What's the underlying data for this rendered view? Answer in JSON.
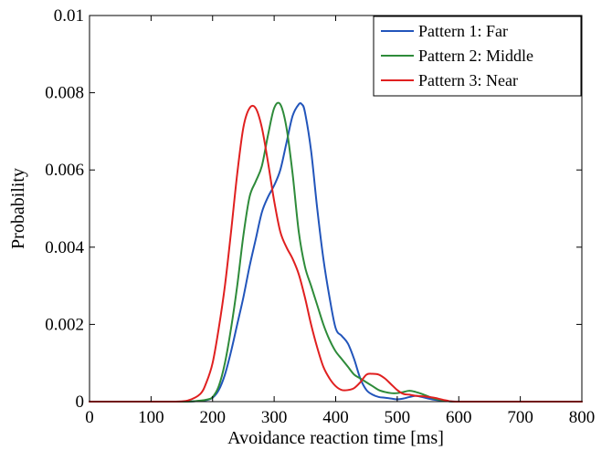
{
  "chart_data": {
    "type": "line",
    "title": "",
    "xlabel": "Avoidance reaction time [ms]",
    "ylabel": "Probability",
    "xlim": [
      0,
      800
    ],
    "ylim": [
      0,
      0.01
    ],
    "xticks": [
      0,
      100,
      200,
      300,
      400,
      500,
      600,
      700,
      800
    ],
    "xtick_labels": [
      "0",
      "100",
      "200",
      "300",
      "400",
      "500",
      "600",
      "700",
      "800"
    ],
    "yticks": [
      0,
      0.002,
      0.004,
      0.006,
      0.008,
      0.01
    ],
    "ytick_labels": [
      "0",
      "0.002",
      "0.004",
      "0.006",
      "0.008",
      "0.01"
    ],
    "grid": false,
    "legend_position": "top-right",
    "series": [
      {
        "name": "Pattern 1: Far",
        "color": "#2255bb",
        "x": [
          0,
          100,
          150,
          170,
          190,
          200,
          210,
          220,
          230,
          240,
          250,
          260,
          270,
          280,
          290,
          300,
          310,
          320,
          330,
          340,
          345,
          350,
          360,
          370,
          380,
          390,
          400,
          410,
          420,
          430,
          440,
          450,
          460,
          470,
          480,
          490,
          500,
          510,
          520,
          530,
          540,
          560,
          580,
          600,
          700,
          800
        ],
        "y": [
          0,
          0,
          0,
          1e-05,
          4e-05,
          0.0001,
          0.0003,
          0.0007,
          0.0013,
          0.002,
          0.0027,
          0.0035,
          0.0042,
          0.0049,
          0.0053,
          0.0056,
          0.006,
          0.0067,
          0.0074,
          0.0077,
          0.0077,
          0.0075,
          0.0065,
          0.005,
          0.0037,
          0.0027,
          0.0019,
          0.0017,
          0.0015,
          0.0011,
          0.0006,
          0.0003,
          0.00018,
          0.00012,
          0.0001,
          8e-05,
          6e-05,
          8e-05,
          0.00012,
          0.00015,
          0.00012,
          5e-05,
          2e-05,
          0,
          0,
          0
        ]
      },
      {
        "name": "Pattern 2: Middle",
        "color": "#2e8b3a",
        "x": [
          0,
          100,
          150,
          170,
          190,
          200,
          210,
          220,
          230,
          240,
          250,
          260,
          270,
          280,
          290,
          300,
          310,
          320,
          330,
          340,
          350,
          360,
          370,
          380,
          390,
          400,
          410,
          420,
          430,
          440,
          450,
          460,
          470,
          480,
          490,
          500,
          510,
          520,
          530,
          540,
          560,
          580,
          600,
          700,
          800
        ],
        "y": [
          0,
          0,
          0,
          1e-05,
          5e-05,
          0.00012,
          0.0004,
          0.001,
          0.0019,
          0.003,
          0.0043,
          0.0053,
          0.0057,
          0.0061,
          0.0069,
          0.0076,
          0.0077,
          0.0071,
          0.0059,
          0.0044,
          0.0035,
          0.003,
          0.0025,
          0.002,
          0.0016,
          0.0013,
          0.0011,
          0.0009,
          0.0007,
          0.0006,
          0.0005,
          0.0004,
          0.0003,
          0.00025,
          0.00022,
          0.00022,
          0.00025,
          0.00028,
          0.00025,
          0.0002,
          8e-05,
          2e-05,
          0,
          0,
          0
        ]
      },
      {
        "name": "Pattern 3: Near",
        "color": "#e02020",
        "x": [
          0,
          100,
          140,
          160,
          180,
          190,
          200,
          210,
          220,
          230,
          240,
          250,
          260,
          270,
          280,
          290,
          300,
          310,
          320,
          330,
          340,
          350,
          360,
          370,
          380,
          390,
          400,
          410,
          420,
          430,
          440,
          450,
          460,
          470,
          480,
          490,
          500,
          510,
          520,
          530,
          540,
          560,
          580,
          600,
          700,
          800
        ],
        "y": [
          0,
          0,
          0,
          3e-05,
          0.0002,
          0.0005,
          0.001,
          0.0019,
          0.003,
          0.0044,
          0.0059,
          0.0071,
          0.0076,
          0.0076,
          0.0071,
          0.0062,
          0.0052,
          0.0044,
          0.004,
          0.0037,
          0.0033,
          0.0027,
          0.002,
          0.0014,
          0.0009,
          0.0006,
          0.0004,
          0.0003,
          0.0003,
          0.00035,
          0.0005,
          0.0007,
          0.00072,
          0.0007,
          0.0006,
          0.00045,
          0.0003,
          0.0002,
          0.00018,
          0.00015,
          0.00014,
          0.0001,
          3e-05,
          0,
          0,
          0
        ]
      }
    ]
  }
}
